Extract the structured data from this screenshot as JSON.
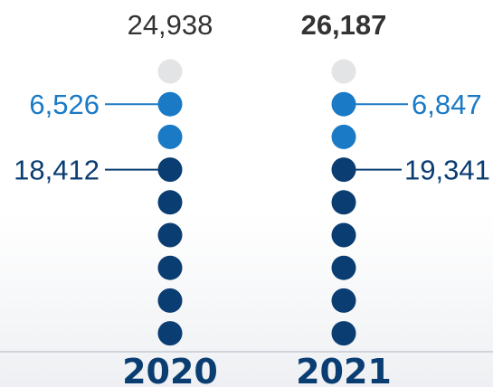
{
  "chart_data": {
    "type": "dot-column",
    "categories": [
      "2020",
      "2021"
    ],
    "totals": [
      24938,
      26187
    ],
    "total_labels": [
      "24,938",
      "26,187"
    ],
    "highlight_total_index": 1,
    "dots_per_column": 9,
    "dot_colors_top_to_bottom": [
      "empty",
      "light",
      "light",
      "dark",
      "dark",
      "dark",
      "dark",
      "dark",
      "dark"
    ],
    "series": [
      {
        "values": [
          6526,
          6847
        ],
        "labels": [
          "6,526",
          "6,847"
        ],
        "color": "#1a7ac6"
      },
      {
        "values": [
          18412,
          19341
        ],
        "labels": [
          "18,412",
          "19,341"
        ],
        "color": "#0a3d72"
      }
    ],
    "colors": {
      "empty": "#e3e4e6",
      "light": "#1a7ac6",
      "dark": "#0a3d72",
      "total_text": "#333333",
      "axis_line": "#c5c9cf"
    }
  }
}
